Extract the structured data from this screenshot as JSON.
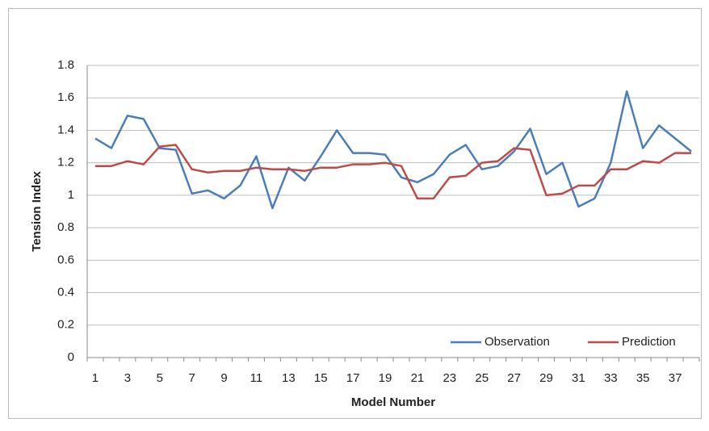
{
  "chart_data": {
    "type": "line",
    "x_label": "Model Number",
    "y_label": "Tension Index",
    "categories": [
      1,
      null,
      3,
      null,
      5,
      null,
      7,
      null,
      9,
      null,
      11,
      null,
      13,
      null,
      15,
      null,
      17,
      null,
      19,
      null,
      21,
      null,
      23,
      null,
      25,
      null,
      27,
      null,
      29,
      null,
      31,
      null,
      33,
      null,
      35,
      null,
      37,
      null
    ],
    "series": [
      {
        "name": "Observation",
        "color": "#4a7ebb",
        "values": [
          1.35,
          1.29,
          1.49,
          1.47,
          1.29,
          1.28,
          1.01,
          1.03,
          0.98,
          1.06,
          1.24,
          0.92,
          1.17,
          1.09,
          1.24,
          1.4,
          1.26,
          1.26,
          1.25,
          1.11,
          1.08,
          1.13,
          1.25,
          1.31,
          1.16,
          1.18,
          1.27,
          1.41,
          1.13,
          1.2,
          0.93,
          0.98,
          1.2,
          1.64,
          1.29,
          1.43,
          1.35,
          1.27
        ]
      },
      {
        "name": "Prediction",
        "color": "#be4b48",
        "values": [
          1.18,
          1.18,
          1.21,
          1.19,
          1.3,
          1.31,
          1.16,
          1.14,
          1.15,
          1.15,
          1.17,
          1.16,
          1.16,
          1.15,
          1.17,
          1.17,
          1.19,
          1.19,
          1.2,
          1.18,
          0.98,
          0.98,
          1.11,
          1.12,
          1.2,
          1.21,
          1.29,
          1.28,
          1.0,
          1.01,
          1.06,
          1.06,
          1.16,
          1.16,
          1.21,
          1.2,
          1.26,
          1.26
        ]
      }
    ],
    "ylim": [
      0,
      1.8
    ],
    "yticks": [
      0,
      0.2,
      0.4,
      0.6,
      0.8,
      1,
      1.2,
      1.4,
      1.6,
      1.8
    ],
    "grid": true,
    "legend": "lower right"
  }
}
